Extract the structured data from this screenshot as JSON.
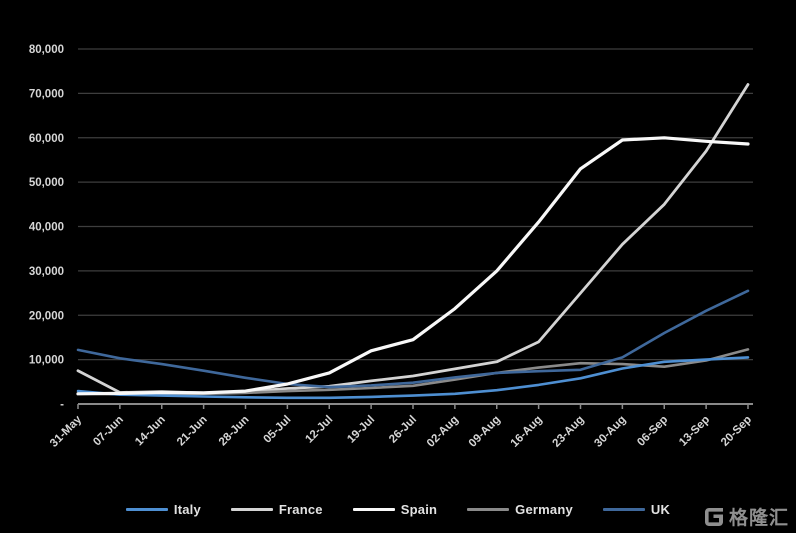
{
  "chart_data": {
    "type": "line",
    "title": "",
    "xlabel": "",
    "ylabel": "",
    "ylim": [
      0,
      80000
    ],
    "ytick_interval": 10000,
    "ytick_labels": [
      "-",
      "10,000",
      "20,000",
      "30,000",
      "40,000",
      "50,000",
      "60,000",
      "70,000",
      "80,000"
    ],
    "grid": "horizontal",
    "legend_position": "bottom",
    "categories": [
      "31-May",
      "07-Jun",
      "14-Jun",
      "21-Jun",
      "28-Jun",
      "05-Jul",
      "12-Jul",
      "19-Jul",
      "26-Jul",
      "02-Aug",
      "09-Aug",
      "16-Aug",
      "23-Aug",
      "30-Aug",
      "06-Sep",
      "13-Sep",
      "20-Sep"
    ],
    "series": [
      {
        "name": "Italy",
        "color": "#4E8FD2",
        "width": 2.6,
        "values": [
          2900,
          2100,
          1900,
          1700,
          1500,
          1400,
          1400,
          1600,
          1900,
          2300,
          3100,
          4300,
          5800,
          8000,
          9500,
          10000,
          10500
        ]
      },
      {
        "name": "France",
        "color": "#D4D4D4",
        "width": 2.8,
        "values": [
          7500,
          2600,
          2800,
          2500,
          2800,
          3500,
          4000,
          5200,
          6300,
          7900,
          9500,
          14000,
          25000,
          36000,
          45000,
          57000,
          72000
        ]
      },
      {
        "name": "Spain",
        "color": "#F8F8F8",
        "width": 3.2,
        "values": [
          2300,
          2400,
          2600,
          2500,
          2900,
          4500,
          7000,
          12000,
          14500,
          21500,
          30000,
          41000,
          53000,
          59500,
          60000,
          59200,
          58600
        ]
      },
      {
        "name": "Germany",
        "color": "#8A8A8A",
        "width": 2.6,
        "values": [
          2400,
          2200,
          2100,
          2300,
          2500,
          2900,
          3200,
          3600,
          4100,
          5500,
          7000,
          8200,
          9200,
          9000,
          8400,
          9800,
          12300
        ]
      },
      {
        "name": "UK",
        "color": "#3F689B",
        "width": 2.6,
        "values": [
          12200,
          10300,
          9000,
          7500,
          5900,
          4500,
          3800,
          4200,
          4800,
          6000,
          7000,
          7400,
          7700,
          10500,
          16000,
          21000,
          25500
        ]
      }
    ]
  },
  "watermark": {
    "brand_text": "格隆汇",
    "icon": "gelonghui-g-logo"
  },
  "colors": {
    "background": "#000000",
    "gridline": "#3E3E3E",
    "axis_line": "#8A8A8A",
    "tick_label": "#D6D6D6"
  }
}
